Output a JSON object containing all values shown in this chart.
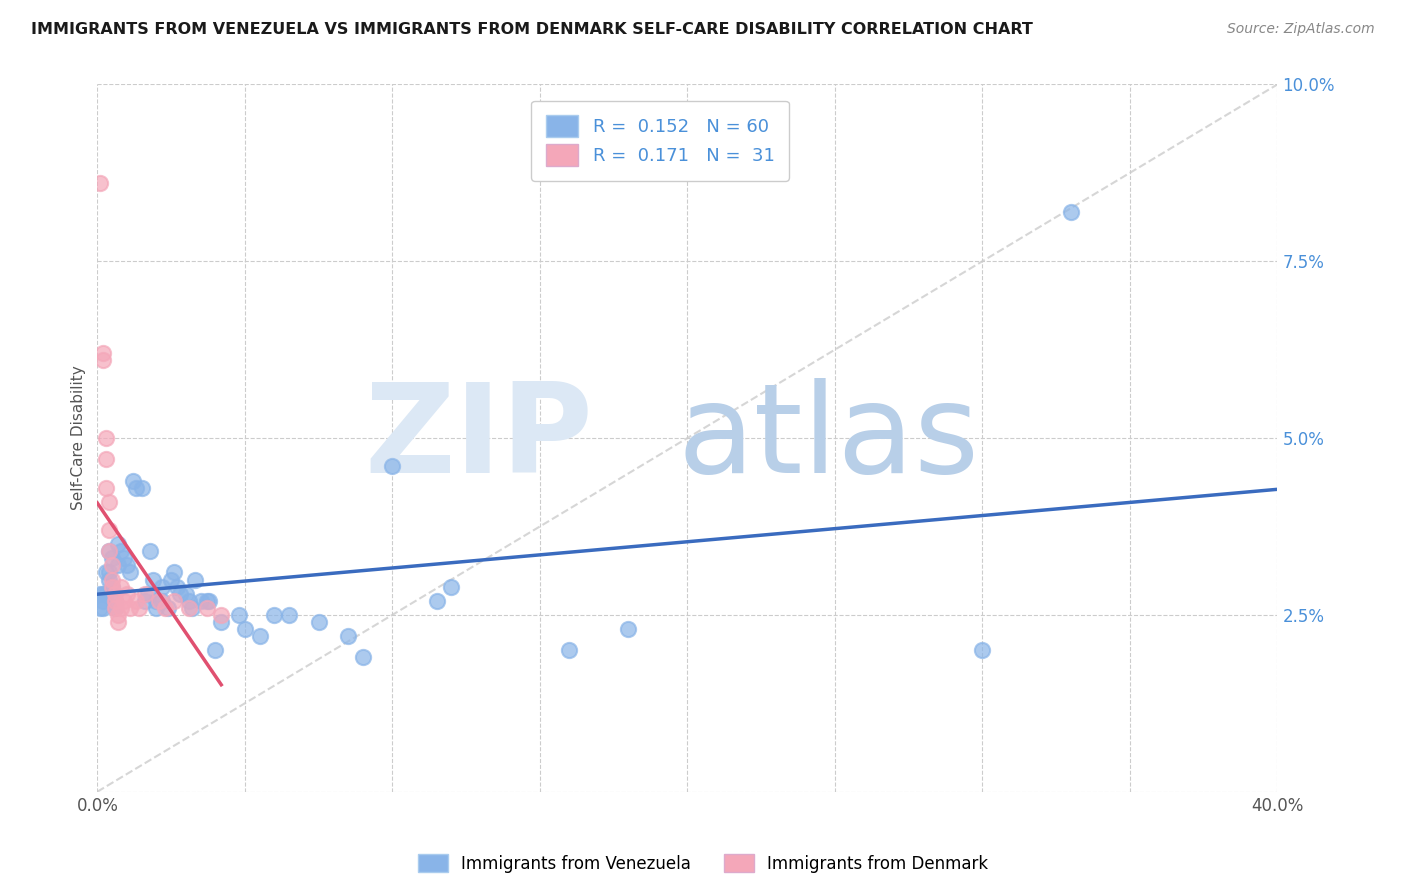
{
  "title": "IMMIGRANTS FROM VENEZUELA VS IMMIGRANTS FROM DENMARK SELF-CARE DISABILITY CORRELATION CHART",
  "source": "Source: ZipAtlas.com",
  "ylabel": "Self-Care Disability",
  "xlim": [
    0.0,
    0.4
  ],
  "ylim": [
    0.0,
    0.1
  ],
  "xticks": [
    0.0,
    0.05,
    0.1,
    0.15,
    0.2,
    0.25,
    0.3,
    0.35,
    0.4
  ],
  "yticks": [
    0.0,
    0.025,
    0.05,
    0.075,
    0.1
  ],
  "venezuela_color": "#89b4e8",
  "venezuela_line_color": "#3a6bbf",
  "denmark_color": "#f4a7b9",
  "denmark_line_color": "#e05070",
  "diagonal_line_color": "#cccccc",
  "venezuela_R": 0.152,
  "venezuela_N": 60,
  "denmark_R": 0.171,
  "denmark_N": 31,
  "background_color": "#ffffff",
  "grid_color": "#cccccc",
  "venezuela_scatter": [
    [
      0.001,
      0.028
    ],
    [
      0.001,
      0.026
    ],
    [
      0.002,
      0.028
    ],
    [
      0.002,
      0.027
    ],
    [
      0.002,
      0.026
    ],
    [
      0.003,
      0.031
    ],
    [
      0.003,
      0.028
    ],
    [
      0.004,
      0.034
    ],
    [
      0.004,
      0.031
    ],
    [
      0.004,
      0.03
    ],
    [
      0.005,
      0.033
    ],
    [
      0.005,
      0.029
    ],
    [
      0.006,
      0.027
    ],
    [
      0.006,
      0.026
    ],
    [
      0.007,
      0.035
    ],
    [
      0.007,
      0.032
    ],
    [
      0.008,
      0.034
    ],
    [
      0.009,
      0.033
    ],
    [
      0.01,
      0.032
    ],
    [
      0.011,
      0.031
    ],
    [
      0.012,
      0.044
    ],
    [
      0.013,
      0.043
    ],
    [
      0.015,
      0.043
    ],
    [
      0.016,
      0.027
    ],
    [
      0.017,
      0.028
    ],
    [
      0.018,
      0.034
    ],
    [
      0.019,
      0.03
    ],
    [
      0.02,
      0.027
    ],
    [
      0.02,
      0.026
    ],
    [
      0.022,
      0.029
    ],
    [
      0.022,
      0.027
    ],
    [
      0.024,
      0.026
    ],
    [
      0.025,
      0.03
    ],
    [
      0.026,
      0.031
    ],
    [
      0.027,
      0.029
    ],
    [
      0.028,
      0.028
    ],
    [
      0.03,
      0.028
    ],
    [
      0.031,
      0.027
    ],
    [
      0.032,
      0.026
    ],
    [
      0.033,
      0.03
    ],
    [
      0.035,
      0.027
    ],
    [
      0.037,
      0.027
    ],
    [
      0.038,
      0.027
    ],
    [
      0.04,
      0.02
    ],
    [
      0.042,
      0.024
    ],
    [
      0.048,
      0.025
    ],
    [
      0.05,
      0.023
    ],
    [
      0.055,
      0.022
    ],
    [
      0.06,
      0.025
    ],
    [
      0.065,
      0.025
    ],
    [
      0.075,
      0.024
    ],
    [
      0.085,
      0.022
    ],
    [
      0.09,
      0.019
    ],
    [
      0.1,
      0.046
    ],
    [
      0.115,
      0.027
    ],
    [
      0.12,
      0.029
    ],
    [
      0.16,
      0.02
    ],
    [
      0.18,
      0.023
    ],
    [
      0.3,
      0.02
    ],
    [
      0.33,
      0.082
    ]
  ],
  "denmark_scatter": [
    [
      0.001,
      0.086
    ],
    [
      0.002,
      0.062
    ],
    [
      0.002,
      0.061
    ],
    [
      0.003,
      0.05
    ],
    [
      0.003,
      0.047
    ],
    [
      0.003,
      0.043
    ],
    [
      0.004,
      0.041
    ],
    [
      0.004,
      0.037
    ],
    [
      0.004,
      0.034
    ],
    [
      0.005,
      0.032
    ],
    [
      0.005,
      0.03
    ],
    [
      0.005,
      0.029
    ],
    [
      0.006,
      0.028
    ],
    [
      0.006,
      0.027
    ],
    [
      0.006,
      0.026
    ],
    [
      0.007,
      0.025
    ],
    [
      0.007,
      0.024
    ],
    [
      0.008,
      0.026
    ],
    [
      0.008,
      0.029
    ],
    [
      0.009,
      0.027
    ],
    [
      0.01,
      0.028
    ],
    [
      0.011,
      0.026
    ],
    [
      0.013,
      0.027
    ],
    [
      0.014,
      0.026
    ],
    [
      0.016,
      0.028
    ],
    [
      0.021,
      0.027
    ],
    [
      0.023,
      0.026
    ],
    [
      0.026,
      0.027
    ],
    [
      0.031,
      0.026
    ],
    [
      0.037,
      0.026
    ],
    [
      0.042,
      0.025
    ]
  ],
  "legend_R_N_color": "#4a90d9",
  "legend_text_color": "#333333",
  "watermark_zip_color": "#dce8f5",
  "watermark_atlas_color": "#b8cfe8"
}
